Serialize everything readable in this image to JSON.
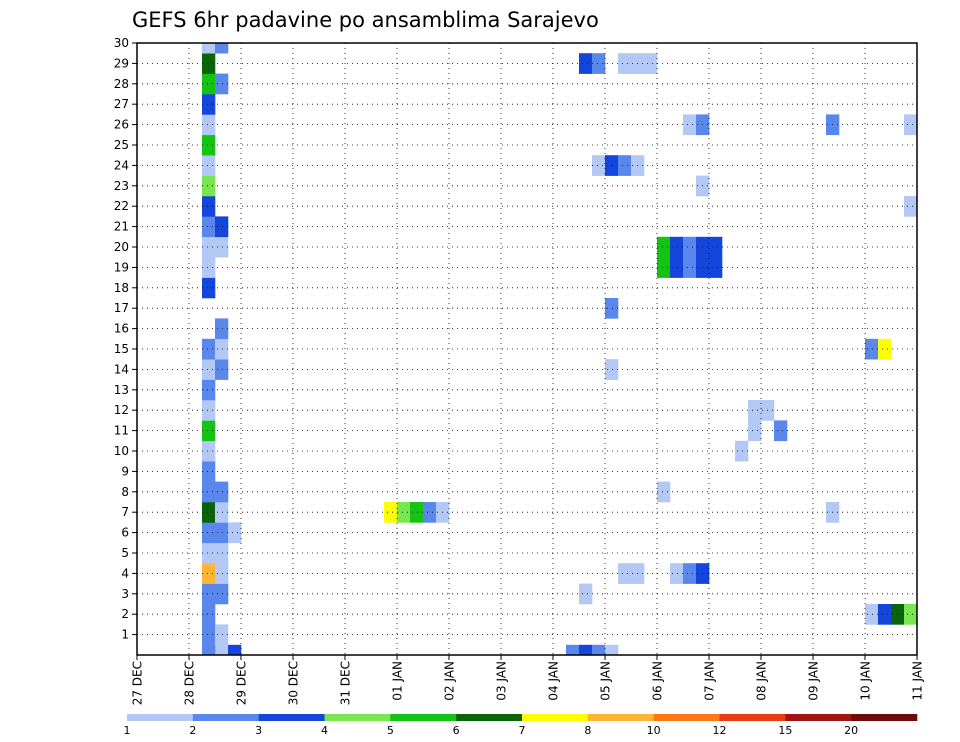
{
  "chart_data": {
    "type": "heatmap",
    "title": "GEFS 6hr padavine po ansamblima Sarajevo",
    "xlabel": "",
    "ylabel": "",
    "x_tick_labels": [
      "27 DEC",
      "28 DEC",
      "29 DEC",
      "30 DEC",
      "31 DEC",
      "01 JAN",
      "02 JAN",
      "03 JAN",
      "04 JAN",
      "05 JAN",
      "06 JAN",
      "07 JAN",
      "08 JAN",
      "09 JAN",
      "10 JAN",
      "11 JAN"
    ],
    "x_range_days": [
      0,
      15
    ],
    "x_step_hours": 6,
    "y_tick_labels": [
      "1",
      "2",
      "3",
      "4",
      "5",
      "6",
      "7",
      "8",
      "9",
      "10",
      "11",
      "12",
      "13",
      "14",
      "15",
      "16",
      "17",
      "18",
      "19",
      "20",
      "21",
      "22",
      "23",
      "24",
      "25",
      "26",
      "27",
      "28",
      "29",
      "30"
    ],
    "y_range_members": [
      0,
      30
    ],
    "grid": true,
    "colorbar": {
      "levels": [
        1,
        2,
        3,
        4,
        5,
        6,
        7,
        8,
        10,
        12,
        15,
        20
      ],
      "colors": [
        "#b4c8f5",
        "#5a87ec",
        "#1446dc",
        "#78e650",
        "#14c314",
        "#0a640a",
        "#ffff00",
        "#ffb432",
        "#ff7814",
        "#e63c14",
        "#a01414",
        "#6e0a0a"
      ]
    },
    "cells": [
      [
        0,
        "1.5",
        1
      ],
      [
        0,
        "1.75",
        3
      ],
      [
        0,
        "1.25",
        2
      ],
      [
        0,
        "8.25",
        2
      ],
      [
        0,
        "8.5",
        3
      ],
      [
        0,
        "8.75",
        2
      ],
      [
        0,
        "9",
        1
      ],
      [
        1,
        "1.25",
        2
      ],
      [
        1,
        "1.5",
        1
      ],
      [
        2,
        "1.25",
        2
      ],
      [
        2,
        "14",
        1
      ],
      [
        2,
        "14.25",
        3
      ],
      [
        2,
        "14.5",
        6
      ],
      [
        2,
        "14.75",
        4
      ],
      [
        2,
        "15",
        1
      ],
      [
        3,
        "1.25",
        2
      ],
      [
        3,
        "1.5",
        2
      ],
      [
        3,
        "8.5",
        1
      ],
      [
        4,
        "1.25",
        8
      ],
      [
        4,
        "1.5",
        1
      ],
      [
        4,
        "9.25",
        1
      ],
      [
        4,
        "9.5",
        1
      ],
      [
        4,
        "10.25",
        1
      ],
      [
        4,
        "10.5",
        2
      ],
      [
        4,
        "10.75",
        3
      ],
      [
        5,
        "1.25",
        1
      ],
      [
        5,
        "1.5",
        1
      ],
      [
        6,
        "1.25",
        2
      ],
      [
        6,
        "1.5",
        2
      ],
      [
        6,
        "1.75",
        1
      ],
      [
        7,
        "1.25",
        6
      ],
      [
        7,
        "1.5",
        1
      ],
      [
        7,
        "4.75",
        7
      ],
      [
        7,
        "5",
        4
      ],
      [
        7,
        "5.25",
        5
      ],
      [
        7,
        "5.5",
        2
      ],
      [
        7,
        "5.75",
        1
      ],
      [
        7,
        "13.25",
        1
      ],
      [
        8,
        "1.25",
        2
      ],
      [
        8,
        "1.5",
        2
      ],
      [
        8,
        "10",
        1
      ],
      [
        9,
        "1.25",
        2
      ],
      [
        9,
        "15",
        2
      ],
      [
        10,
        "1.25",
        1
      ],
      [
        10,
        "11.5",
        1
      ],
      [
        11,
        "1.25",
        5
      ],
      [
        11,
        "11.75",
        1
      ],
      [
        11,
        "12.25",
        2
      ],
      [
        12,
        "1.25",
        1
      ],
      [
        12,
        "11.75",
        1
      ],
      [
        12,
        "12",
        1
      ],
      [
        13,
        "1.25",
        2
      ],
      [
        14,
        "1.25",
        1
      ],
      [
        14,
        "1.5",
        2
      ],
      [
        14,
        "9",
        1
      ],
      [
        15,
        "1.25",
        2
      ],
      [
        15,
        "1.5",
        1
      ],
      [
        15,
        "14",
        2
      ],
      [
        15,
        "14.25",
        7
      ],
      [
        16,
        "1.5",
        2
      ],
      [
        17,
        "9",
        2
      ],
      [
        18,
        "1.25",
        3
      ],
      [
        19,
        "1.25",
        1
      ],
      [
        19,
        "10",
        5
      ],
      [
        19,
        "10.25",
        3
      ],
      [
        19,
        "10.5",
        2
      ],
      [
        19,
        "10.75",
        3
      ],
      [
        19,
        "11",
        3
      ],
      [
        20,
        "1.25",
        1
      ],
      [
        20,
        "1.5",
        1
      ],
      [
        20,
        "10",
        5
      ],
      [
        20,
        "10.25",
        3
      ],
      [
        20,
        "10.5",
        2
      ],
      [
        20,
        "10.75",
        3
      ],
      [
        20,
        "11",
        3
      ],
      [
        21,
        "1.25",
        2
      ],
      [
        21,
        "1.5",
        3
      ],
      [
        22,
        "1.25",
        3
      ],
      [
        22,
        "14.75",
        1
      ],
      [
        23,
        "1.25",
        4
      ],
      [
        23,
        "10.75",
        1
      ],
      [
        24,
        "1.25",
        1
      ],
      [
        24,
        "8.75",
        1
      ],
      [
        24,
        "9",
        3
      ],
      [
        24,
        "9.25",
        2
      ],
      [
        24,
        "9.5",
        1
      ],
      [
        25,
        "1.25",
        5
      ],
      [
        25,
        "15",
        3
      ],
      [
        26,
        "1.25",
        1
      ],
      [
        26,
        "10.5",
        1
      ],
      [
        26,
        "10.75",
        2
      ],
      [
        26,
        "13.25",
        2
      ],
      [
        26,
        "14.75",
        1
      ],
      [
        27,
        "1.25",
        3
      ],
      [
        28,
        "1.25",
        5
      ],
      [
        28,
        "1.5",
        2
      ],
      [
        29,
        "1.25",
        6
      ],
      [
        29,
        "8.5",
        3
      ],
      [
        29,
        "8.75",
        2
      ],
      [
        29,
        "9.25",
        1
      ],
      [
        29,
        "9.5",
        1
      ],
      [
        29,
        "9.75",
        1
      ],
      [
        30,
        "1.25",
        1
      ],
      [
        30,
        "1.5",
        2
      ]
    ]
  }
}
